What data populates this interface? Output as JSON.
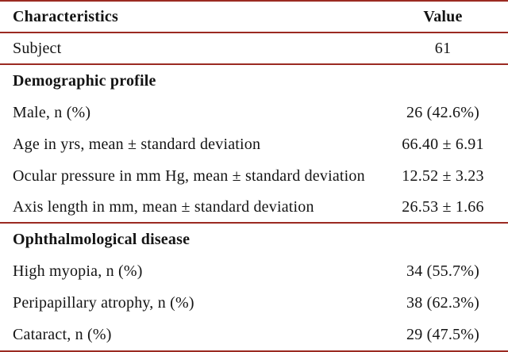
{
  "colors": {
    "line": "#9b2a22",
    "text": "#141414",
    "background": "#ffffff"
  },
  "table": {
    "header": {
      "characteristics": "Characteristics",
      "value": "Value"
    },
    "rows": [
      {
        "label": "Subject",
        "value": "61",
        "type": "data"
      },
      {
        "label": "Demographic profile",
        "value": "",
        "type": "section"
      },
      {
        "label": "Male, n (%)",
        "value": "26 (42.6%)",
        "type": "data"
      },
      {
        "label": "Age in yrs, mean ± standard deviation",
        "value": "66.40 ± 6.91",
        "type": "data"
      },
      {
        "label": "Ocular pressure in mm Hg, mean ± standard deviation",
        "value": "12.52 ± 3.23",
        "type": "data"
      },
      {
        "label": "Axis length in mm, mean ± standard deviation",
        "value": "26.53 ± 1.66",
        "type": "data"
      },
      {
        "label": "Ophthalmological disease",
        "value": "",
        "type": "section"
      },
      {
        "label": "High myopia, n (%)",
        "value": "34 (55.7%)",
        "type": "data"
      },
      {
        "label": "Peripapillary atrophy, n (%)",
        "value": "38 (62.3%)",
        "type": "data"
      },
      {
        "label": "Cataract, n (%)",
        "value": "29 (47.5%)",
        "type": "data"
      }
    ]
  }
}
